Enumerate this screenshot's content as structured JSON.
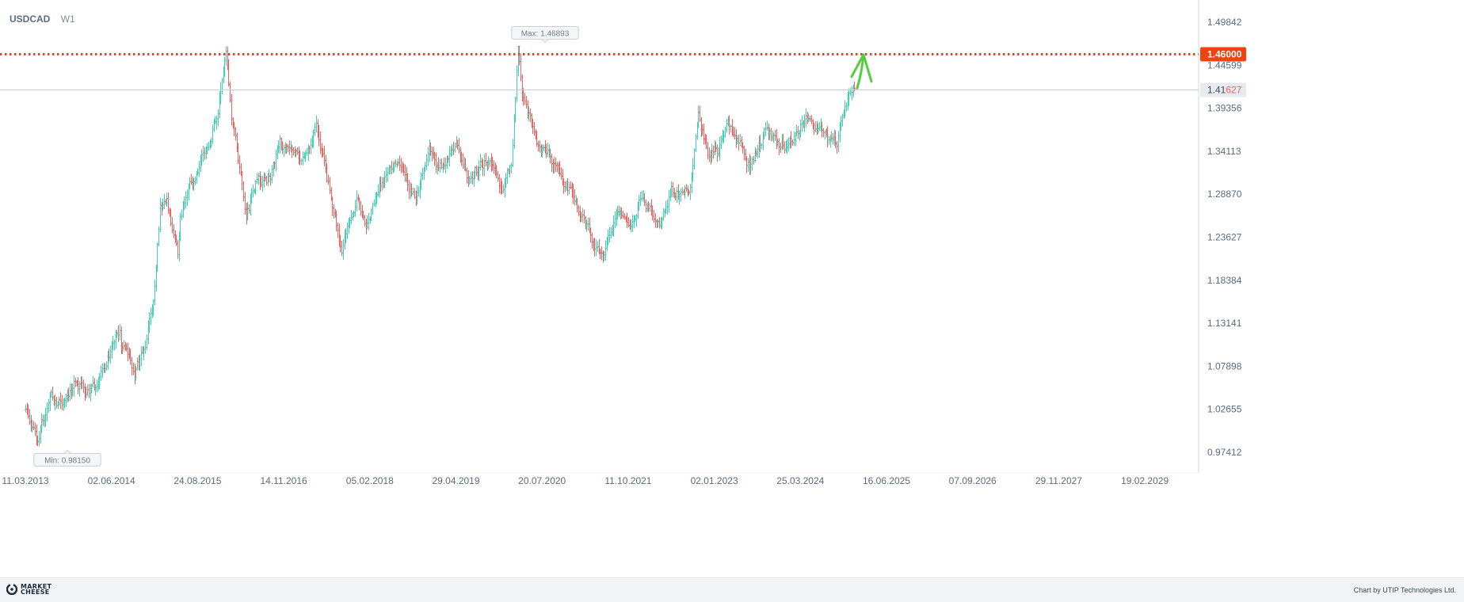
{
  "header": {
    "symbol": "USDCAD",
    "timeframe": "W1"
  },
  "footer": {
    "brand_line1": "MARKET",
    "brand_line2": "CHEESE",
    "credit": "Chart by UTIP Technologies Ltd."
  },
  "colors": {
    "up": "#3fd1b2",
    "down": "#f0625f",
    "level_line": "#f2420f",
    "arrow": "#55cc44"
  },
  "chart_data": {
    "type": "ohlc",
    "symbol": "USDCAD",
    "timeframe": "W1",
    "x_ticks": [
      "11.03.2013",
      "02.06.2014",
      "24.08.2015",
      "14.11.2016",
      "05.02.2018",
      "29.04.2019",
      "20.07.2020",
      "11.10.2021",
      "02.01.2023",
      "25.03.2024",
      "16.06.2025",
      "07.09.2026",
      "29.11.2027",
      "19.02.2029"
    ],
    "y_ticks": [
      "1.49842",
      "1.44599",
      "1.39356",
      "1.34113",
      "1.28870",
      "1.23627",
      "1.18384",
      "1.13141",
      "1.07898",
      "1.02655",
      "0.97412"
    ],
    "ylim": [
      0.95,
      1.505
    ],
    "start_date": "04.03.2013",
    "end_date": "30.12.2024",
    "anchors": [
      [
        "04.03.2013",
        1.03
      ],
      [
        "13.05.2013",
        0.9815
      ],
      [
        "27.05.2013",
        1.0
      ],
      [
        "15.07.2013",
        1.04
      ],
      [
        "16.09.2013",
        1.035
      ],
      [
        "25.11.2013",
        1.06
      ],
      [
        "27.01.2014",
        1.05
      ],
      [
        "24.03.2014",
        1.06
      ],
      [
        "16.06.2014",
        1.11
      ],
      [
        "14.07.2014",
        1.12
      ],
      [
        "21.07.2014",
        1.1
      ],
      [
        "08.09.2014",
        1.09
      ],
      [
        "29.09.2014",
        1.075
      ],
      [
        "03.11.2014",
        1.09
      ],
      [
        "24.11.2014",
        1.1
      ],
      [
        "05.01.2015",
        1.16
      ],
      [
        "19.01.2015",
        1.2
      ],
      [
        "09.02.2015",
        1.27
      ],
      [
        "16.03.2015",
        1.28
      ],
      [
        "11.05.2015",
        1.22
      ],
      [
        "25.05.2015",
        1.26
      ],
      [
        "20.07.2015",
        1.305
      ],
      [
        "07.09.2015",
        1.33
      ],
      [
        "26.10.2015",
        1.35
      ],
      [
        "07.12.2015",
        1.395
      ],
      [
        "18.01.2016",
        1.4689
      ],
      [
        "15.02.2016",
        1.39
      ],
      [
        "02.05.2016",
        1.26
      ],
      [
        "20.06.2016",
        1.3
      ],
      [
        "05.09.2016",
        1.31
      ],
      [
        "24.10.2016",
        1.35
      ],
      [
        "19.12.2016",
        1.34
      ],
      [
        "27.02.2017",
        1.33
      ],
      [
        "01.05.2017",
        1.37
      ],
      [
        "03.07.2017",
        1.3
      ],
      [
        "11.09.2017",
        1.22
      ],
      [
        "16.10.2017",
        1.255
      ],
      [
        "04.12.2017",
        1.285
      ],
      [
        "15.01.2018",
        1.24
      ],
      [
        "19.03.2018",
        1.3
      ],
      [
        "25.06.2018",
        1.325
      ],
      [
        "01.10.2018",
        1.28
      ],
      [
        "10.12.2018",
        1.35
      ],
      [
        "28.01.2019",
        1.32
      ],
      [
        "13.05.2019",
        1.345
      ],
      [
        "08.07.2019",
        1.305
      ],
      [
        "30.09.2019",
        1.33
      ],
      [
        "23.12.2019",
        1.3
      ],
      [
        "10.02.2020",
        1.33
      ],
      [
        "16.03.2020",
        1.4666
      ],
      [
        "06.04.2020",
        1.41
      ],
      [
        "04.05.2020",
        1.39
      ],
      [
        "22.06.2020",
        1.36
      ],
      [
        "27.07.2020",
        1.34
      ],
      [
        "28.09.2020",
        1.325
      ],
      [
        "16.11.2020",
        1.305
      ],
      [
        "08.02.2021",
        1.265
      ],
      [
        "31.05.2021",
        1.205
      ],
      [
        "19.07.2021",
        1.25
      ],
      [
        "16.08.2021",
        1.27
      ],
      [
        "11.10.2021",
        1.24
      ],
      [
        "13.12.2021",
        1.285
      ],
      [
        "28.03.2022",
        1.25
      ],
      [
        "23.05.2022",
        1.29
      ],
      [
        "18.07.2022",
        1.29
      ],
      [
        "29.08.2022",
        1.3
      ],
      [
        "10.10.2022",
        1.385
      ],
      [
        "28.11.2022",
        1.34
      ],
      [
        "16.01.2023",
        1.34
      ],
      [
        "13.03.2023",
        1.38
      ],
      [
        "15.05.2023",
        1.35
      ],
      [
        "03.07.2023",
        1.325
      ],
      [
        "02.10.2023",
        1.37
      ],
      [
        "27.11.2023",
        1.35
      ],
      [
        "22.01.2024",
        1.35
      ],
      [
        "15.04.2024",
        1.38
      ],
      [
        "10.06.2024",
        1.37
      ],
      [
        "08.07.2024",
        1.365
      ],
      [
        "02.09.2024",
        1.35
      ],
      [
        "30.09.2024",
        1.35
      ],
      [
        "04.11.2024",
        1.395
      ],
      [
        "25.11.2024",
        1.405
      ],
      [
        "30.12.2024",
        1.42
      ]
    ],
    "price_max": {
      "label": "Max: 1.46893",
      "value": 1.46893
    },
    "price_min": {
      "label": "Min: 0.98150",
      "value": 0.9815
    },
    "level_line": {
      "label": "1.46000",
      "value": 1.46
    },
    "current_price": {
      "value": 1.41627,
      "label_prefix": "1.41",
      "label_suffix": "627"
    },
    "arrow_annotation": {
      "from": 1.416,
      "to": 1.459,
      "color": "green"
    },
    "grid": false
  }
}
